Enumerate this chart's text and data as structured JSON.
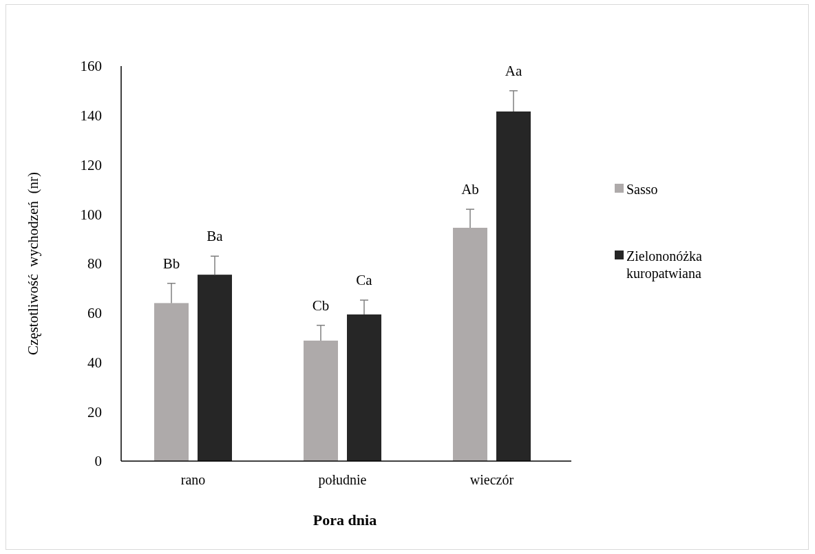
{
  "chart_data": {
    "type": "bar",
    "xlabel": "Pora dnia",
    "ylabel": "Częstotliwość  wychodzeń  (nr)",
    "categories": [
      "rano",
      "południe",
      "wieczór"
    ],
    "series": [
      {
        "name": "Sasso",
        "color": "#aeaaaa",
        "values": [
          64,
          48.8,
          94.5
        ],
        "errors": [
          [
            64,
            72
          ],
          [
            48.8,
            55
          ],
          [
            94.5,
            102
          ]
        ]
      },
      {
        "name": "Zielononóżka kuropatwiana",
        "color": "#262626",
        "values": [
          75.5,
          59.4,
          141.6
        ],
        "errors": [
          [
            75.5,
            83
          ],
          [
            59.4,
            65.2
          ],
          [
            141.6,
            150
          ]
        ]
      }
    ],
    "ylim": [
      0,
      160
    ],
    "yticks": [
      0,
      20,
      40,
      60,
      80,
      100,
      120,
      140,
      160
    ],
    "grid": false,
    "legend": "right",
    "annotations": [
      "Bb",
      "Ba",
      "Cb",
      "Ca",
      "Ab",
      "Aa"
    ]
  }
}
